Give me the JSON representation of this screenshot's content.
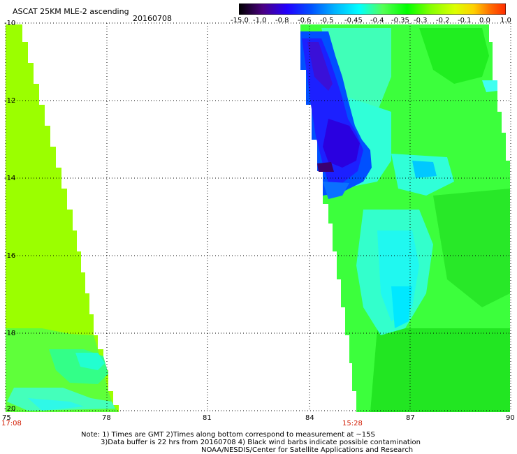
{
  "header": {
    "title": "ASCAT 25KM MLE-2 ascending",
    "date": "20160708"
  },
  "colorbar": {
    "labels": [
      "-15.0",
      "-1.0",
      "-0.8",
      "-0.6",
      "-0.5",
      "-0.45",
      "-0.4",
      "-0.35",
      "-0.3",
      "-0.2",
      "-0.1",
      "0.0",
      "1.0"
    ],
    "colors": [
      "#000000",
      "#4b0082",
      "#2200ff",
      "#0050ff",
      "#00b4ff",
      "#00ffff",
      "#55ff55",
      "#00ff00",
      "#88ff00",
      "#ddff00",
      "#ffd000",
      "#ff7000",
      "#ff2a00"
    ]
  },
  "map": {
    "x_ticks": [
      "75",
      "78",
      "81",
      "84",
      "87",
      "90"
    ],
    "y_ticks": [
      "-10",
      "-12",
      "-14",
      "-16",
      "-18",
      "-20"
    ],
    "pass_times": [
      "17:08",
      "15:28"
    ]
  },
  "notes": {
    "line1": "Note: 1) Times are GMT 2)Times along bottom correspond to measurement at ~15S",
    "line2": "3)Data buffer is 22 hrs from 20160708 4) Black wind barbs indicate possible contamination",
    "line3": "NOAA/NESDIS/Center for Satellite Applications and Research"
  }
}
